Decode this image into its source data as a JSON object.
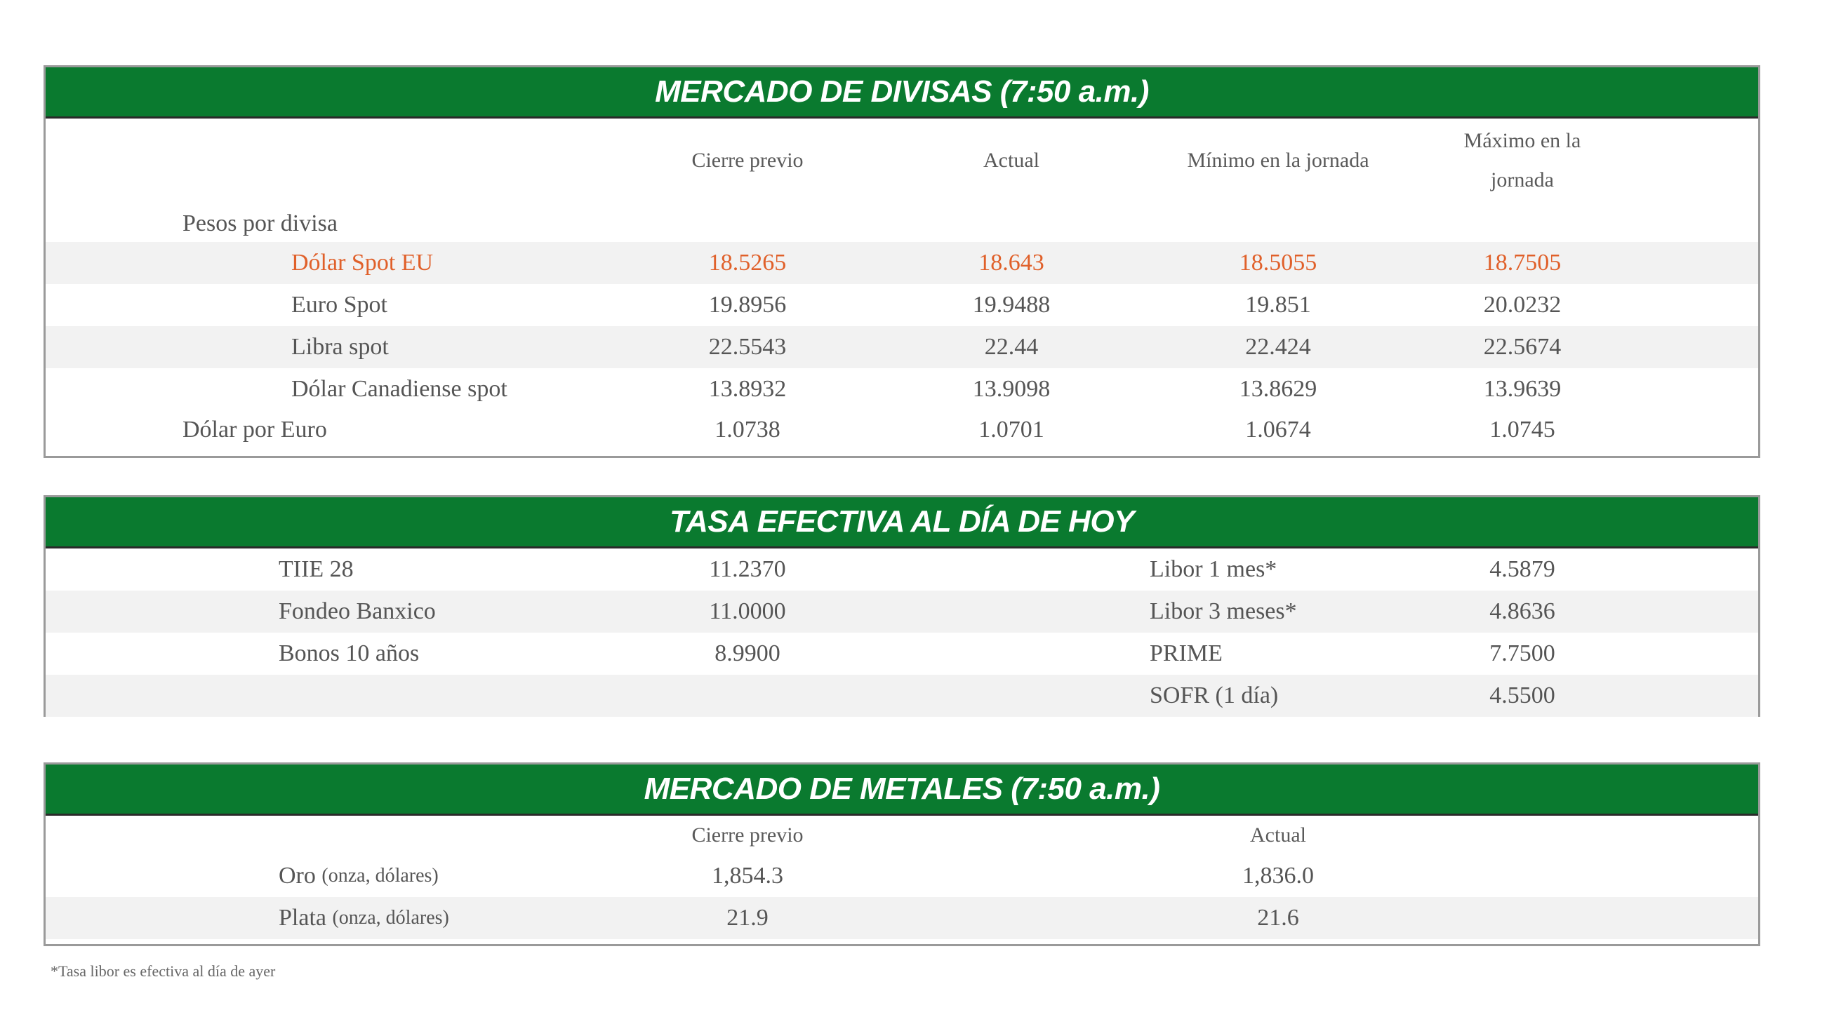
{
  "divisas": {
    "title": "MERCADO DE DIVISAS (7:50 a.m.)",
    "columns": [
      "Cierre previo",
      "Actual",
      "Mínimo en la jornada",
      "Máximo en la",
      "jornada"
    ],
    "group_label": "Pesos por divisa",
    "rows": [
      {
        "label": "Dólar Spot EU",
        "cierre": "18.5265",
        "actual": "18.643",
        "min": "18.5055",
        "max": "18.7505"
      },
      {
        "label": "Euro Spot",
        "cierre": "19.8956",
        "actual": "19.9488",
        "min": "19.851",
        "max": "20.0232"
      },
      {
        "label": "Libra spot",
        "cierre": "22.5543",
        "actual": "22.44",
        "min": "22.424",
        "max": "22.5674"
      },
      {
        "label": "Dólar Canadiense spot",
        "cierre": "13.8932",
        "actual": "13.9098",
        "min": "13.8629",
        "max": "13.9639"
      },
      {
        "label": "Dólar por Euro",
        "cierre": "1.0738",
        "actual": "1.0701",
        "min": "1.0674",
        "max": "1.0745"
      }
    ],
    "highlight_color": "#e0602a"
  },
  "tasas": {
    "title": "TASA EFECTIVA AL DÍA DE HOY",
    "rows": [
      {
        "l_label": "TIIE 28",
        "l_value": "11.2370",
        "r_label": "Libor 1 mes*",
        "r_value": "4.5879"
      },
      {
        "l_label": "Fondeo Banxico",
        "l_value": "11.0000",
        "r_label": "Libor 3 meses*",
        "r_value": "4.8636"
      },
      {
        "l_label": "Bonos 10 años",
        "l_value": "8.9900",
        "r_label": "PRIME",
        "r_value": "7.7500"
      },
      {
        "l_label": "",
        "l_value": "",
        "r_label": "SOFR (1 día)",
        "r_value": "4.5500"
      }
    ]
  },
  "metales": {
    "title": "MERCADO DE METALES (7:50 a.m.)",
    "columns": [
      "Cierre previo",
      "Actual"
    ],
    "rows": [
      {
        "label": "Oro",
        "unit": "(onza, dólares)",
        "cierre": "1,854.3",
        "actual": "1,836.0"
      },
      {
        "label": "Plata",
        "unit": "(onza, dólares)",
        "cierre": "21.9",
        "actual": "21.6"
      }
    ]
  },
  "footnote": "*Tasa libor es efectiva al día de ayer",
  "colors": {
    "header_green": "#0a7a2f",
    "row_shade": "#f2f2f2"
  }
}
